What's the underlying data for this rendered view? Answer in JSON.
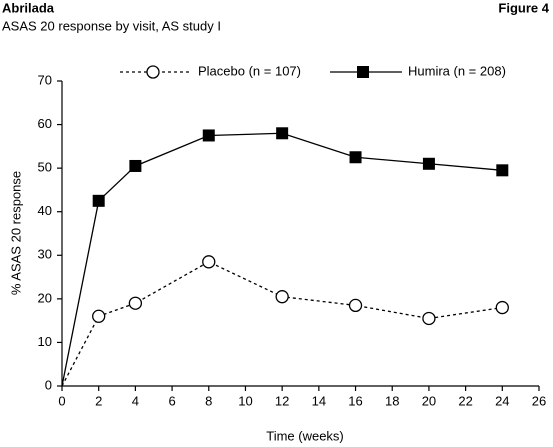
{
  "chart_data": {
    "type": "line",
    "title": "Abrilada",
    "figure_label": "Figure 4",
    "subtitle": "ASAS 20 response by visit, AS study I",
    "x_label": "Time (weeks)",
    "y_label": "% ASAS 20 response",
    "x": [
      0,
      2,
      4,
      8,
      12,
      16,
      20,
      24
    ],
    "series": [
      {
        "name": "Placebo (n = 107)",
        "color": "#000000",
        "line_style": "dashed",
        "marker": "circle",
        "values": [
          0,
          16,
          19,
          28.5,
          20.5,
          18.5,
          15.5,
          18
        ]
      },
      {
        "name": "Humira (n = 208)",
        "color": "#000000",
        "line_style": "solid",
        "marker": "square",
        "values": [
          0,
          42.5,
          50.5,
          57.5,
          58,
          52.5,
          51,
          49.5
        ]
      }
    ],
    "xlim": [
      0,
      26
    ],
    "xticks": [
      0,
      2,
      4,
      6,
      8,
      10,
      12,
      14,
      16,
      18,
      20,
      22,
      24,
      26
    ],
    "ylim": [
      0,
      70
    ],
    "yticks": [
      0,
      10,
      20,
      30,
      40,
      50,
      60,
      70
    ],
    "legend": "top"
  }
}
